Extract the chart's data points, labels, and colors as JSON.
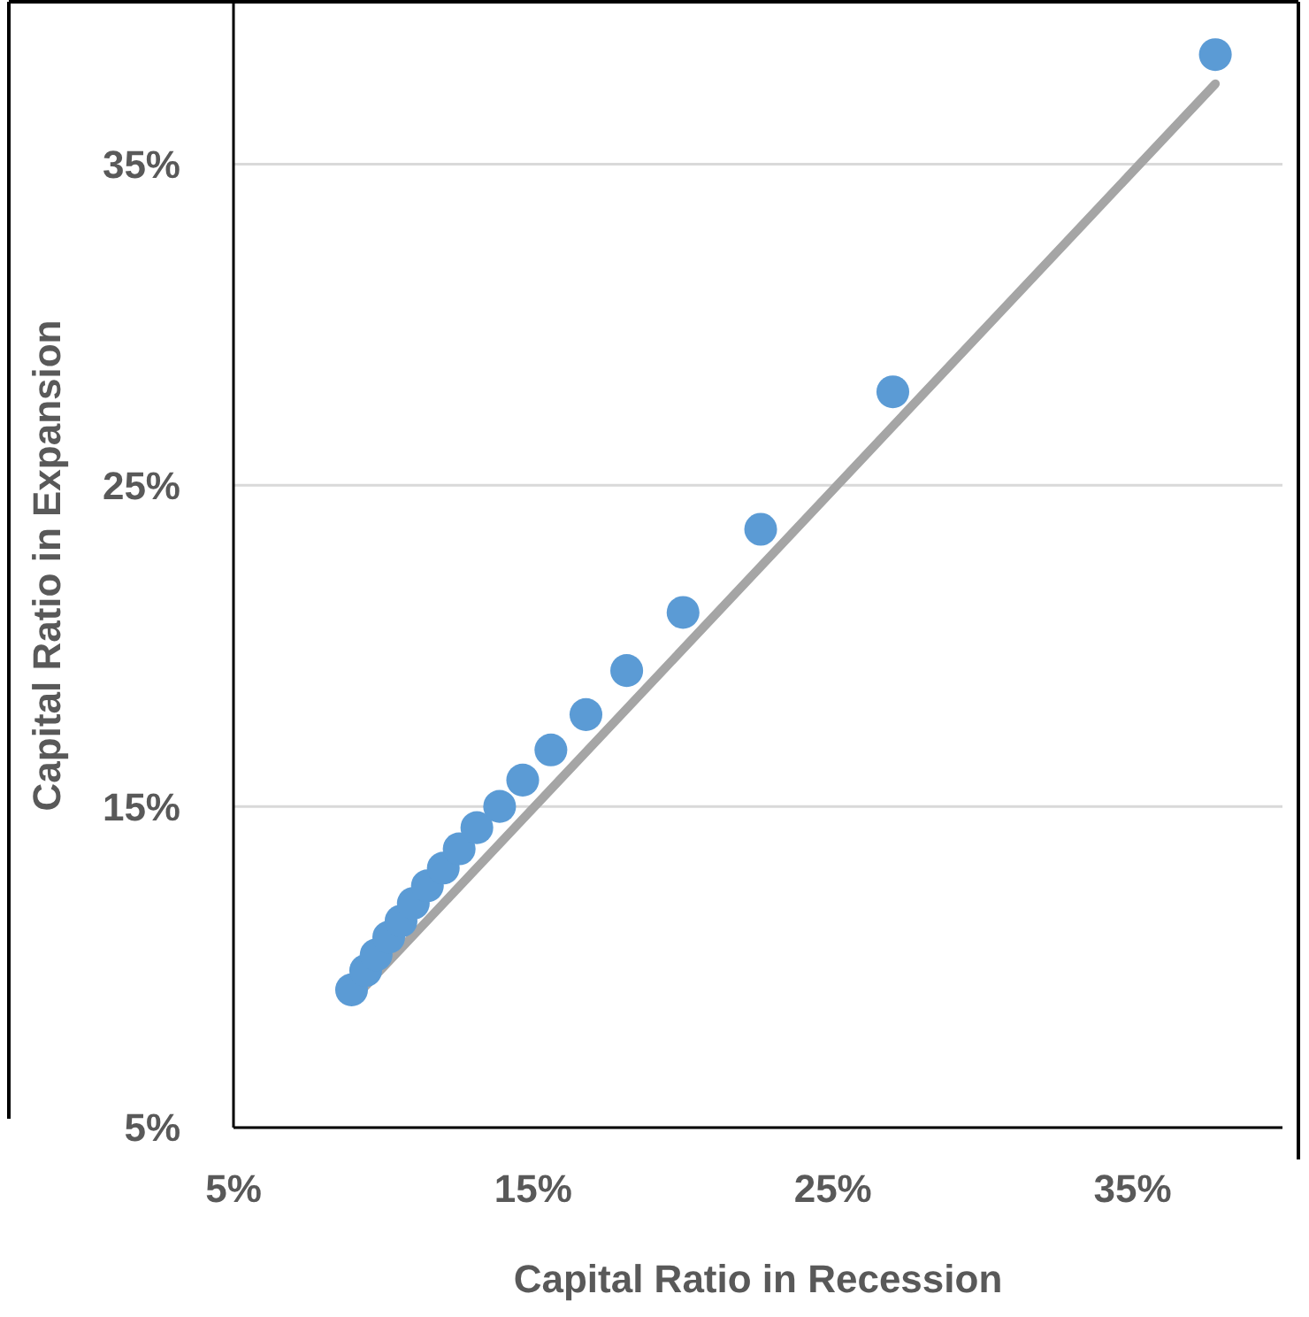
{
  "chart_data": {
    "type": "scatter",
    "xlabel": "Capital Ratio in Recession",
    "ylabel": "Capital Ratio in Expansion",
    "x": [
      8.94,
      9.41,
      9.76,
      10.18,
      10.59,
      11.0,
      11.47,
      12.0,
      12.53,
      13.12,
      13.88,
      14.65,
      15.59,
      16.76,
      18.12,
      20.0,
      22.59,
      27.0,
      37.76
    ],
    "series": [
      {
        "type": "line",
        "color": "#a5a5a5",
        "x": [
          9.4,
          37.76
        ],
        "values": [
          9.4,
          37.5
        ],
        "marker": "none",
        "line_style": "solid"
      },
      {
        "color": "#5b9bd5",
        "marker": "circle",
        "values": [
          9.29,
          9.89,
          10.38,
          10.93,
          11.43,
          11.98,
          12.53,
          13.08,
          13.68,
          14.34,
          15.0,
          15.82,
          16.76,
          17.86,
          19.23,
          21.04,
          23.63,
          27.91,
          38.41
        ]
      }
    ],
    "xlim": [
      5,
      40
    ],
    "ylim": [
      5,
      40
    ],
    "xticks": [
      {
        "value": 5,
        "label": "5%"
      },
      {
        "value": 15,
        "label": "15%"
      },
      {
        "value": 25,
        "label": "25%"
      },
      {
        "value": 35,
        "label": "35%"
      }
    ],
    "yticks": [
      {
        "value": 5,
        "label": "5%"
      },
      {
        "value": 15,
        "label": "15%"
      },
      {
        "value": 25,
        "label": "25%"
      },
      {
        "value": 35,
        "label": "35%"
      }
    ],
    "grid": "y"
  }
}
